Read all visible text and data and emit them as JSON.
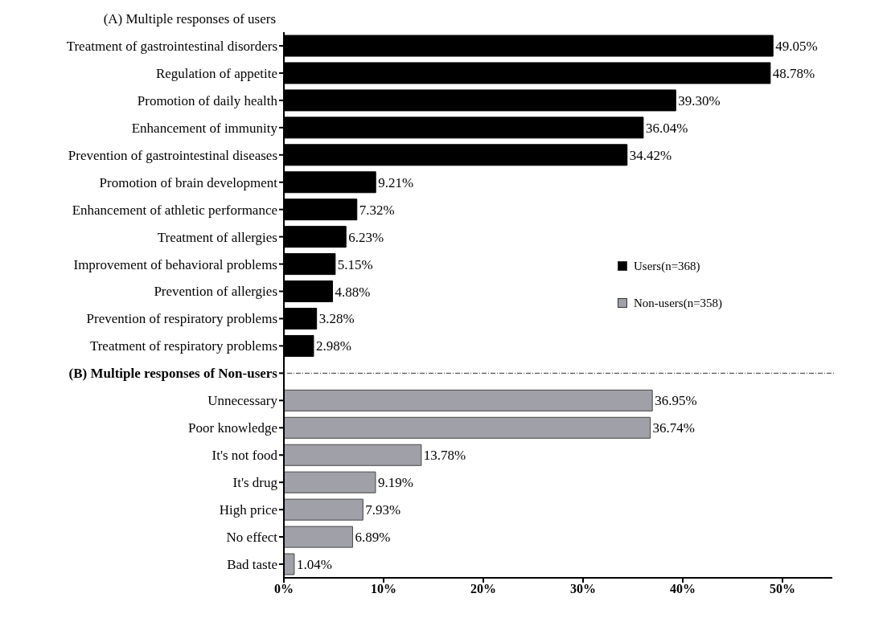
{
  "chart_data": {
    "type": "bar",
    "orientation": "horizontal",
    "stacked": true,
    "title": "(A) Multiple responses of users",
    "annotations": [
      "(B) Multiple responses of Non-users"
    ],
    "categories": [
      "Treatment of gastrointestinal disorders",
      "Regulation of appetite",
      "Promotion of daily health",
      "Enhancement of immunity",
      "Prevention of gastrointestinal diseases",
      "Promotion of brain development",
      "Enhancement of athletic performance",
      "Treatment of allergies",
      "Improvement of behavioral problems",
      "Prevention of allergies",
      "Prevention of respiratory problems",
      "Treatment of respiratory problems",
      null,
      "Unnecessary",
      "Poor knowledge",
      "It's not food",
      "It's drug",
      "High price",
      "No effect",
      "Bad taste"
    ],
    "series": [
      {
        "name": "Users(n=368)",
        "color": "#000000",
        "values": [
          49.05,
          48.78,
          39.3,
          36.04,
          34.42,
          9.21,
          7.32,
          6.23,
          5.15,
          4.88,
          3.28,
          2.98,
          null,
          null,
          null,
          null,
          null,
          null,
          null,
          null
        ],
        "value_labels": [
          "49.05%",
          "48.78%",
          "39.30%",
          "36.04%",
          "34.42%",
          "9.21%",
          "7.32%",
          "6.23%",
          "5.15%",
          "4.88%",
          "3.28%",
          "2.98%",
          null,
          null,
          null,
          null,
          null,
          null,
          null,
          null
        ]
      },
      {
        "name": "Non-users(n=358)",
        "color": "#a0a0a8",
        "values": [
          null,
          null,
          null,
          null,
          null,
          null,
          null,
          null,
          null,
          null,
          null,
          null,
          null,
          36.95,
          36.74,
          13.78,
          9.19,
          7.93,
          6.89,
          1.04
        ],
        "value_labels": [
          null,
          null,
          null,
          null,
          null,
          null,
          null,
          null,
          null,
          null,
          null,
          null,
          null,
          "36.95%",
          "36.74%",
          "13.78%",
          "9.19%",
          "7.93%",
          "6.89%",
          "1.04%"
        ]
      }
    ],
    "xlim": [
      0,
      55
    ],
    "xticks": [
      {
        "value": 0,
        "label": "0%"
      },
      {
        "value": 10,
        "label": "10%"
      },
      {
        "value": 20,
        "label": "20%"
      },
      {
        "value": 30,
        "label": "30%"
      },
      {
        "value": 40,
        "label": "40%"
      },
      {
        "value": 50,
        "label": "50%"
      }
    ],
    "grid": false,
    "legend": "right"
  }
}
